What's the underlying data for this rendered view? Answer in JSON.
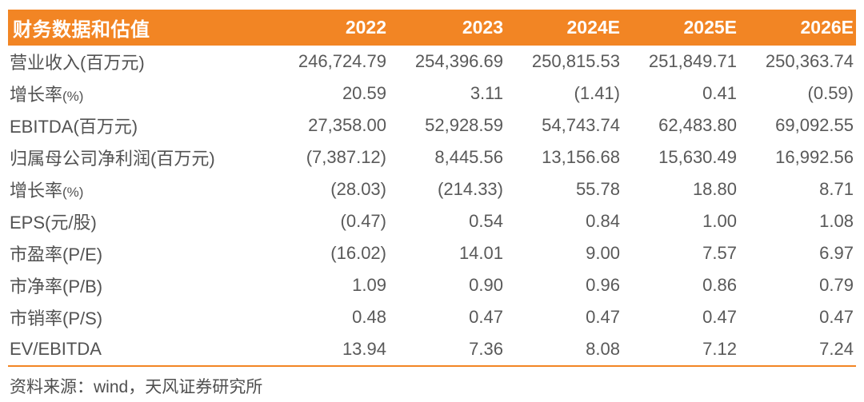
{
  "colors": {
    "accent_orange": "#F28524",
    "header_text": "#FFFFFF",
    "body_text": "#595959",
    "footer_text": "#4F4F4F"
  },
  "table": {
    "title": "财务数据和估值",
    "columns": [
      "2022",
      "2023",
      "2024E",
      "2025E",
      "2026E"
    ],
    "rows": [
      {
        "label": "营业收入(百万元)",
        "label_small": "",
        "values": [
          "246,724.79",
          "254,396.69",
          "250,815.53",
          "251,849.71",
          "250,363.74"
        ]
      },
      {
        "label": "增长率",
        "label_small": "(%)",
        "values": [
          "20.59",
          "3.11",
          "(1.41)",
          "0.41",
          "(0.59)"
        ]
      },
      {
        "label": "EBITDA(百万元)",
        "label_small": "",
        "values": [
          "27,358.00",
          "52,928.59",
          "54,743.74",
          "62,483.80",
          "69,092.55"
        ]
      },
      {
        "label": "归属母公司净利润(百万元)",
        "label_small": "",
        "values": [
          "(7,387.12)",
          "8,445.56",
          "13,156.68",
          "15,630.49",
          "16,992.56"
        ]
      },
      {
        "label": "增长率",
        "label_small": "(%)",
        "values": [
          "(28.03)",
          "(214.33)",
          "55.78",
          "18.80",
          "8.71"
        ]
      },
      {
        "label": "EPS(元/股)",
        "label_small": "",
        "values": [
          "(0.47)",
          "0.54",
          "0.84",
          "1.00",
          "1.08"
        ]
      },
      {
        "label": "市盈率(P/E)",
        "label_small": "",
        "values": [
          "(16.02)",
          "14.01",
          "9.00",
          "7.57",
          "6.97"
        ]
      },
      {
        "label": "市净率(P/B)",
        "label_small": "",
        "values": [
          "1.09",
          "0.90",
          "0.96",
          "0.86",
          "0.79"
        ]
      },
      {
        "label": "市销率(P/S)",
        "label_small": "",
        "values": [
          "0.48",
          "0.47",
          "0.47",
          "0.47",
          "0.47"
        ]
      },
      {
        "label": "EV/EBITDA",
        "label_small": "",
        "values": [
          "13.94",
          "7.36",
          "8.08",
          "7.12",
          "7.24"
        ]
      }
    ],
    "source_note": "资料来源：wind，天风证券研究所"
  }
}
